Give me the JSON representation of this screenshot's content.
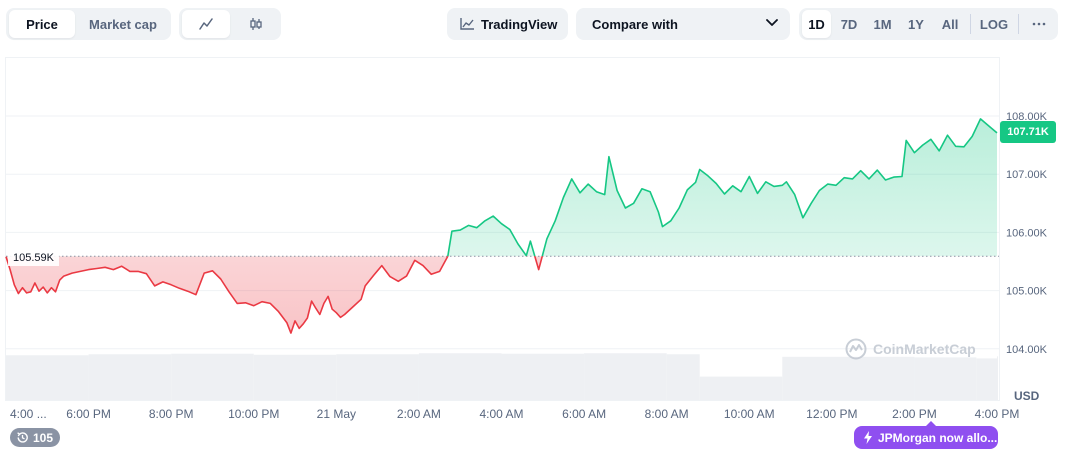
{
  "toolbar": {
    "metric_tabs": [
      {
        "label": "Price",
        "active": true
      },
      {
        "label": "Market cap",
        "active": false
      }
    ],
    "chart_style_icons": [
      {
        "icon": "line-chart-icon",
        "active": true
      },
      {
        "icon": "candlestick-icon",
        "active": false
      }
    ],
    "tradingview_label": "TradingView",
    "compare_label": "Compare with",
    "ranges": [
      {
        "label": "1D",
        "active": true
      },
      {
        "label": "7D",
        "active": false
      },
      {
        "label": "1M",
        "active": false
      },
      {
        "label": "1Y",
        "active": false
      },
      {
        "label": "All",
        "active": false
      }
    ],
    "log_label": "LOG",
    "more_icon": "more-horizontal-icon"
  },
  "current_price_label": "107.71K",
  "open_price_label": "105.59K",
  "currency_label": "USD",
  "watermark": "CoinMarketCap",
  "volume_badge": "105",
  "news_badge": "JPMorgan now allo...",
  "colors": {
    "up": "#16c784",
    "down": "#ea3943",
    "news": "#8f4ff0"
  },
  "chart_data": {
    "type": "area",
    "baseline": 105590,
    "ylim": [
      103900,
      108300
    ],
    "yticks": [
      104000,
      105000,
      106000,
      107000,
      108000
    ],
    "ytick_labels": [
      "104.00K",
      "105.00K",
      "106.00K",
      "107.00K",
      "108.00K"
    ],
    "xticks": [
      {
        "label": "4:00 ...",
        "hour": 0
      },
      {
        "label": "6:00 PM",
        "hour": 2
      },
      {
        "label": "8:00 PM",
        "hour": 4
      },
      {
        "label": "10:00 PM",
        "hour": 6
      },
      {
        "label": "21 May",
        "hour": 8
      },
      {
        "label": "2:00 AM",
        "hour": 10
      },
      {
        "label": "4:00 AM",
        "hour": 12
      },
      {
        "label": "6:00 AM",
        "hour": 14
      },
      {
        "label": "8:00 AM",
        "hour": 16
      },
      {
        "label": "10:00 AM",
        "hour": 18
      },
      {
        "label": "12:00 PM",
        "hour": 20
      },
      {
        "label": "2:00 PM",
        "hour": 22
      },
      {
        "label": "4:00 PM",
        "hour": 24
      }
    ],
    "price_series": [
      [
        0,
        105580
      ],
      [
        0.1,
        105360
      ],
      [
        0.2,
        105100
      ],
      [
        0.3,
        104950
      ],
      [
        0.4,
        105050
      ],
      [
        0.5,
        104960
      ],
      [
        0.6,
        104980
      ],
      [
        0.7,
        105130
      ],
      [
        0.8,
        104990
      ],
      [
        0.9,
        105060
      ],
      [
        1.0,
        104960
      ],
      [
        1.1,
        105050
      ],
      [
        1.2,
        104980
      ],
      [
        1.3,
        105180
      ],
      [
        1.4,
        105250
      ],
      [
        1.6,
        105300
      ],
      [
        1.8,
        105330
      ],
      [
        2.0,
        105360
      ],
      [
        2.2,
        105380
      ],
      [
        2.4,
        105400
      ],
      [
        2.6,
        105360
      ],
      [
        2.8,
        105420
      ],
      [
        3.0,
        105330
      ],
      [
        3.2,
        105330
      ],
      [
        3.4,
        105290
      ],
      [
        3.6,
        105080
      ],
      [
        3.8,
        105150
      ],
      [
        4.0,
        105100
      ],
      [
        4.2,
        105040
      ],
      [
        4.4,
        104990
      ],
      [
        4.6,
        104930
      ],
      [
        4.8,
        105300
      ],
      [
        5.0,
        105340
      ],
      [
        5.2,
        105200
      ],
      [
        5.4,
        104980
      ],
      [
        5.6,
        104780
      ],
      [
        5.8,
        104790
      ],
      [
        6.0,
        104740
      ],
      [
        6.2,
        104810
      ],
      [
        6.4,
        104780
      ],
      [
        6.6,
        104640
      ],
      [
        6.8,
        104450
      ],
      [
        6.9,
        104270
      ],
      [
        7.0,
        104480
      ],
      [
        7.1,
        104350
      ],
      [
        7.2,
        104430
      ],
      [
        7.3,
        104530
      ],
      [
        7.4,
        104820
      ],
      [
        7.5,
        104700
      ],
      [
        7.6,
        104590
      ],
      [
        7.7,
        104780
      ],
      [
        7.8,
        104900
      ],
      [
        7.9,
        104680
      ],
      [
        8.0,
        104620
      ],
      [
        8.1,
        104540
      ],
      [
        8.2,
        104590
      ],
      [
        8.4,
        104720
      ],
      [
        8.6,
        104850
      ],
      [
        8.7,
        105080
      ],
      [
        8.9,
        105260
      ],
      [
        9.1,
        105430
      ],
      [
        9.3,
        105240
      ],
      [
        9.5,
        105160
      ],
      [
        9.7,
        105250
      ],
      [
        9.9,
        105520
      ],
      [
        10.1,
        105430
      ],
      [
        10.3,
        105280
      ],
      [
        10.5,
        105330
      ],
      [
        10.7,
        105590
      ],
      [
        10.8,
        106020
      ],
      [
        11.0,
        106040
      ],
      [
        11.2,
        106120
      ],
      [
        11.4,
        106080
      ],
      [
        11.6,
        106200
      ],
      [
        11.8,
        106280
      ],
      [
        12.0,
        106150
      ],
      [
        12.2,
        106050
      ],
      [
        12.4,
        105800
      ],
      [
        12.6,
        105600
      ],
      [
        12.7,
        105850
      ],
      [
        12.9,
        105360
      ],
      [
        13.1,
        105890
      ],
      [
        13.3,
        106200
      ],
      [
        13.5,
        106600
      ],
      [
        13.7,
        106920
      ],
      [
        13.9,
        106680
      ],
      [
        14.1,
        106830
      ],
      [
        14.3,
        106700
      ],
      [
        14.5,
        106650
      ],
      [
        14.6,
        107300
      ],
      [
        14.8,
        106720
      ],
      [
        15.0,
        106420
      ],
      [
        15.2,
        106500
      ],
      [
        15.4,
        106750
      ],
      [
        15.6,
        106700
      ],
      [
        15.8,
        106350
      ],
      [
        15.9,
        106100
      ],
      [
        16.1,
        106200
      ],
      [
        16.3,
        106420
      ],
      [
        16.5,
        106730
      ],
      [
        16.7,
        106860
      ],
      [
        16.8,
        107080
      ],
      [
        17.0,
        106970
      ],
      [
        17.2,
        106840
      ],
      [
        17.4,
        106660
      ],
      [
        17.6,
        106800
      ],
      [
        17.8,
        106700
      ],
      [
        18.0,
        106960
      ],
      [
        18.2,
        106670
      ],
      [
        18.4,
        106870
      ],
      [
        18.6,
        106790
      ],
      [
        18.8,
        106810
      ],
      [
        18.9,
        106870
      ],
      [
        19.1,
        106650
      ],
      [
        19.3,
        106250
      ],
      [
        19.5,
        106500
      ],
      [
        19.7,
        106720
      ],
      [
        19.9,
        106830
      ],
      [
        20.1,
        106810
      ],
      [
        20.3,
        106940
      ],
      [
        20.5,
        106920
      ],
      [
        20.7,
        107060
      ],
      [
        20.9,
        106920
      ],
      [
        21.1,
        107070
      ],
      [
        21.3,
        106900
      ],
      [
        21.5,
        106950
      ],
      [
        21.7,
        106960
      ],
      [
        21.8,
        107580
      ],
      [
        22.0,
        107370
      ],
      [
        22.2,
        107500
      ],
      [
        22.4,
        107600
      ],
      [
        22.6,
        107400
      ],
      [
        22.8,
        107670
      ],
      [
        23.0,
        107480
      ],
      [
        23.2,
        107470
      ],
      [
        23.4,
        107650
      ],
      [
        23.6,
        107950
      ],
      [
        23.8,
        107830
      ],
      [
        24.0,
        107710
      ]
    ],
    "volume_note": "relative bar heights",
    "volume_series": [
      [
        0,
        0.86
      ],
      [
        2,
        0.88
      ],
      [
        4,
        0.89
      ],
      [
        6,
        0.87
      ],
      [
        8,
        0.88
      ],
      [
        10,
        0.9
      ],
      [
        12,
        0.89
      ],
      [
        14,
        0.9
      ],
      [
        16,
        0.88
      ],
      [
        16.8,
        0.45
      ],
      [
        18.8,
        0.83
      ],
      [
        22,
        0.82
      ],
      [
        23.5,
        0.8
      ],
      [
        24,
        0.84
      ]
    ]
  }
}
